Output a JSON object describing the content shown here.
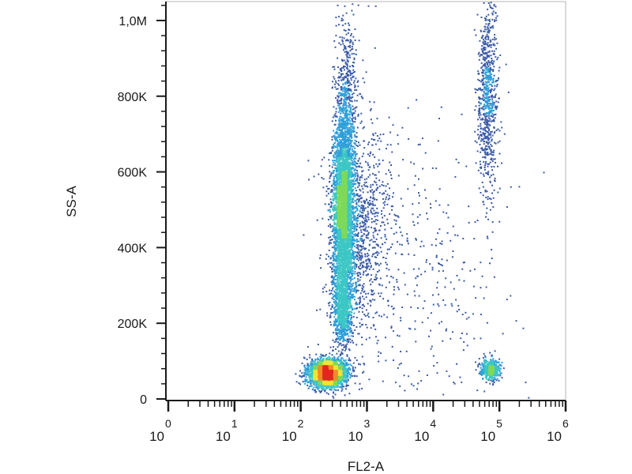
{
  "chart_data": {
    "type": "scatter",
    "title": "",
    "xlabel": "FL2-A",
    "ylabel": "SS-A",
    "x_scale": "log",
    "xlim": [
      1,
      1000000
    ],
    "ylim": [
      0,
      1050000
    ],
    "grid": false,
    "legend": "none",
    "density_colormap": [
      "#3b5ba6",
      "#2f9fd8",
      "#3cc7c4",
      "#7ed957",
      "#f2e433",
      "#f08a2c",
      "#e3261f"
    ],
    "x_ticks": [
      {
        "base": "10",
        "exp": "0",
        "value": 1
      },
      {
        "base": "10",
        "exp": "1",
        "value": 10
      },
      {
        "base": "10",
        "exp": "2",
        "value": 100
      },
      {
        "base": "10",
        "exp": "3",
        "value": 1000
      },
      {
        "base": "10",
        "exp": "4",
        "value": 10000
      },
      {
        "base": "10",
        "exp": "5",
        "value": 100000
      },
      {
        "base": "10",
        "exp": "6",
        "value": 1000000
      }
    ],
    "y_ticks": [
      {
        "label": "0",
        "value": 0
      },
      {
        "label": "200K",
        "value": 200000
      },
      {
        "label": "400K",
        "value": 400000
      },
      {
        "label": "600K",
        "value": 600000
      },
      {
        "label": "800K",
        "value": 800000
      },
      {
        "label": "1,0M",
        "value": 1000000
      }
    ],
    "populations": [
      {
        "cx": 250,
        "cy": 70000,
        "sdx": 0.14,
        "sdy": 18000,
        "n": 2600
      },
      {
        "cx": 430,
        "cy": 500000,
        "sdx": 0.08,
        "sdy": 120000,
        "n": 3400
      },
      {
        "cx": 480,
        "cy": 750000,
        "sdx": 0.08,
        "sdy": 140000,
        "n": 700
      },
      {
        "cx": 420,
        "cy": 240000,
        "sdx": 0.07,
        "sdy": 50000,
        "n": 900
      },
      {
        "cx": 700,
        "cy": 450000,
        "sdx": 0.25,
        "sdy": 150000,
        "n": 1100
      },
      {
        "cx": 70000,
        "cy": 80000,
        "sdx": 0.07,
        "sdy": 14000,
        "n": 500
      },
      {
        "cx": 65000,
        "cy": 800000,
        "sdx": 0.08,
        "sdy": 130000,
        "n": 800
      },
      {
        "cx": 8000,
        "cy": 300000,
        "sdx": 0.6,
        "sdy": 200000,
        "n": 350
      }
    ]
  }
}
